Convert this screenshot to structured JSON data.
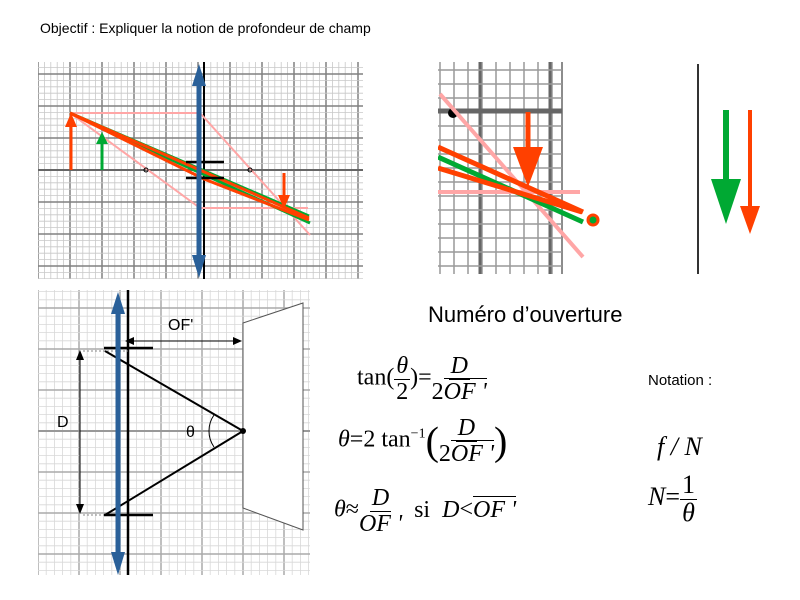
{
  "objective": "Objectif : Expliquer la notion de profondeur de champ",
  "section_title": "Numéro d’ouverture",
  "notation_label": "Notation :",
  "diagram_labels": {
    "of": "OF'",
    "d": "D",
    "theta": "θ"
  },
  "formulas": {
    "f1": {
      "fn": "tan",
      "lp": "(",
      "num_theta": "θ",
      "den2": "2",
      "rp": ")",
      "eq": "=",
      "num": "D",
      "den_pre": "2",
      "den_bar": "OF '"
    },
    "f2": {
      "lhs": "θ",
      "eq": "=",
      "pre": "2 tan",
      "sup": "−1",
      "lp": "(",
      "num": "D",
      "den_pre": "2",
      "den_bar": "OF '",
      "rp": ")"
    },
    "f3": {
      "lhs": "θ",
      "approx": "≈",
      "num": "D",
      "den_bar": "OF '",
      "si": "si",
      "rhs_d": "D",
      "lt": "<",
      "rhs_bar": "OF '"
    },
    "n1": "f / N",
    "n2": {
      "lhs": "N",
      "eq": "=",
      "num": "1",
      "den": "θ"
    }
  },
  "colors": {
    "lens": "#2a6099",
    "object": "#ff4000",
    "green": "#00a933",
    "ray_light": "#ffa6a6"
  }
}
